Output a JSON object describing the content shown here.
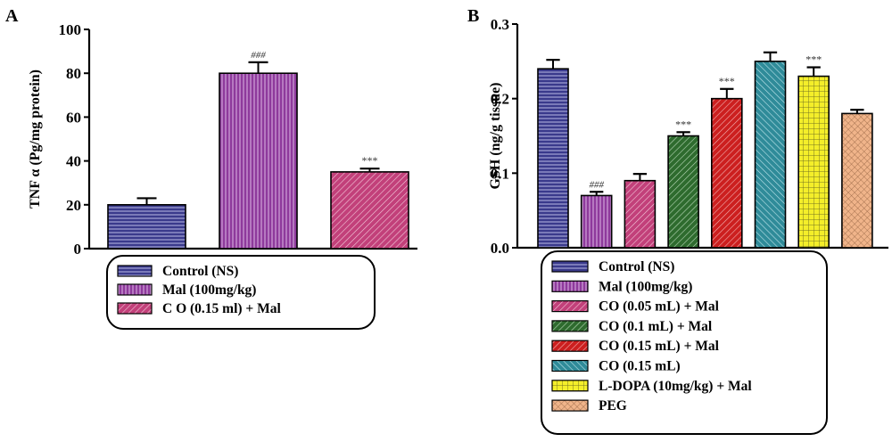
{
  "figure": {
    "panels": [
      "A",
      "B"
    ]
  },
  "chart_data": [
    {
      "type": "bar",
      "panel": "A",
      "ylabel": "TNF α (Pg/mg protein)",
      "xlabel": "",
      "ylim": [
        0,
        100
      ],
      "yticks": [
        "0",
        "20",
        "40",
        "60",
        "80",
        "100"
      ],
      "ytick_values": [
        0,
        20,
        40,
        60,
        80,
        100
      ],
      "categories": [
        "Control (NS)",
        "Mal (100mg/kg)",
        "C O (0.15 ml) + Mal"
      ],
      "values": [
        20,
        80,
        35
      ],
      "errors": [
        3,
        5,
        1.5
      ],
      "annotations": [
        "",
        "###",
        "***"
      ],
      "colors": [
        "#3a3a8c",
        "#8e3a9c",
        "#c2407a"
      ],
      "patterns": [
        "horizontal",
        "vertical",
        "diagonal"
      ],
      "grid": false,
      "legend": "bottom"
    },
    {
      "type": "bar",
      "panel": "B",
      "ylabel": "GSH (ng/g tissue)",
      "xlabel": "",
      "ylim": [
        0,
        0.3
      ],
      "yticks": [
        "0.0",
        "0.1",
        "0.2",
        "0.3"
      ],
      "ytick_values": [
        0,
        0.1,
        0.2,
        0.3
      ],
      "categories": [
        "Control (NS)",
        "Mal (100mg/kg)",
        "CO (0.05 mL) + Mal",
        "CO (0.1 mL) + Mal",
        "CO (0.15 mL) + Mal",
        "CO (0.15 mL)",
        "L-DOPA (10mg/kg) + Mal",
        "PEG"
      ],
      "values": [
        0.24,
        0.07,
        0.09,
        0.15,
        0.2,
        0.25,
        0.23,
        0.18
      ],
      "errors": [
        0.012,
        0.005,
        0.009,
        0.005,
        0.013,
        0.012,
        0.012,
        0.005
      ],
      "annotations": [
        "",
        "###",
        "",
        "***",
        "***",
        "",
        "***",
        ""
      ],
      "colors": [
        "#3a3a8c",
        "#8e3a9c",
        "#c2407a",
        "#2e6b2e",
        "#cc1f1f",
        "#2f8b99",
        "#f4ee2a",
        "#f0b48a"
      ],
      "patterns": [
        "horizontal",
        "vertical",
        "diagonal",
        "diagonal",
        "diagonal",
        "diagonal",
        "grid",
        "crosshatch"
      ],
      "grid": false,
      "legend": "bottom"
    }
  ]
}
